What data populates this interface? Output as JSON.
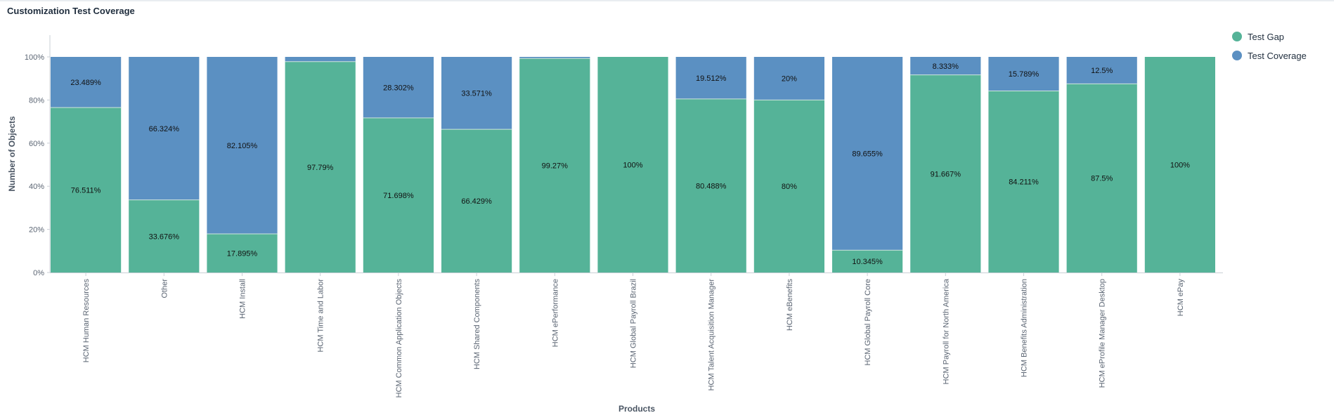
{
  "title": "Customization Test Coverage",
  "chart_data": {
    "type": "bar",
    "stacked": true,
    "normalized": true,
    "categories": [
      "HCM Human Resources",
      "Other",
      "HCM Install",
      "HCM Time and Labor",
      "HCM Common Application Objects",
      "HCM Shared Components",
      "HCM ePerformance",
      "HCM Global Payroll Brazil",
      "HCM Talent Acquisition Manager",
      "HCM eBenefits",
      "HCM Global Payroll Core",
      "HCM Payroll for North America",
      "HCM Benefits Administration",
      "HCM eProfile Manager Desktop",
      "HCM ePay"
    ],
    "series": [
      {
        "name": "Test Gap",
        "color": "#55b398",
        "values": [
          76.511,
          33.676,
          17.895,
          97.79,
          71.698,
          66.429,
          99.27,
          100,
          80.488,
          80,
          10.345,
          91.667,
          84.211,
          87.5,
          100
        ],
        "labels": [
          "76.511%",
          "33.676%",
          "17.895%",
          "97.79%",
          "71.698%",
          "66.429%",
          "99.27%",
          "100%",
          "80.488%",
          "80%",
          "10.345%",
          "91.667%",
          "84.211%",
          "87.5%",
          "100%"
        ]
      },
      {
        "name": "Test Coverage",
        "color": "#5b90c2",
        "values": [
          23.489,
          66.324,
          82.105,
          2.21,
          28.302,
          33.571,
          0.73,
          0,
          19.512,
          20,
          89.655,
          8.333,
          15.789,
          12.5,
          0
        ],
        "labels": [
          "23.489%",
          "66.324%",
          "82.105%",
          "",
          "28.302%",
          "33.571%",
          "",
          "",
          "19.512%",
          "20%",
          "89.655%",
          "8.333%",
          "15.789%",
          "12.5%",
          ""
        ]
      }
    ],
    "xlabel": "Products",
    "ylabel": "Number of Objects",
    "ylim": [
      0,
      100
    ],
    "yticks": [
      "0%",
      "20%",
      "40%",
      "60%",
      "80%",
      "100%"
    ],
    "legend_position": "top-right",
    "grid": false
  }
}
